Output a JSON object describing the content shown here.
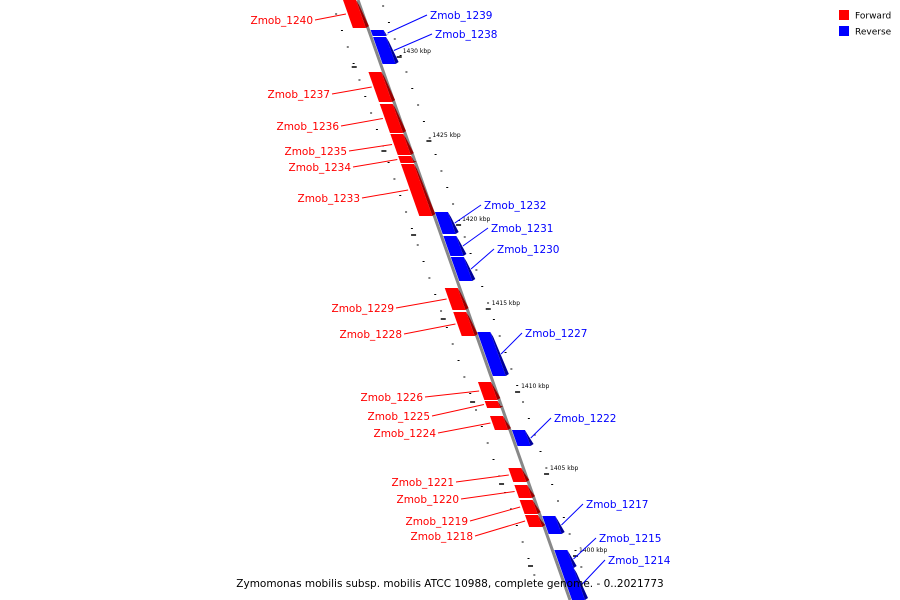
{
  "caption": "Zymomonas mobilis subsp. mobilis ATCC 10988, complete genome. - 0..2021773",
  "legend": [
    {
      "label": "Forward",
      "color": "#ff0000"
    },
    {
      "label": "Reverse",
      "color": "#0000ff"
    }
  ],
  "colors": {
    "forward": "#ff0000",
    "reverse": "#0000ff",
    "backbone": "#888888"
  },
  "ticks": [
    "1430 kbp",
    "1425 kbp",
    "1420 kbp",
    "1415 kbp",
    "1410 kbp",
    "1405 kbp",
    "1400 kbp"
  ],
  "genes": [
    {
      "name": "Zmob_1240",
      "strand": "forward"
    },
    {
      "name": "Zmob_1239",
      "strand": "reverse"
    },
    {
      "name": "Zmob_1238",
      "strand": "reverse"
    },
    {
      "name": "Zmob_1237",
      "strand": "forward"
    },
    {
      "name": "Zmob_1236",
      "strand": "forward"
    },
    {
      "name": "Zmob_1235",
      "strand": "forward"
    },
    {
      "name": "Zmob_1234",
      "strand": "forward"
    },
    {
      "name": "Zmob_1233",
      "strand": "forward"
    },
    {
      "name": "Zmob_1232",
      "strand": "reverse"
    },
    {
      "name": "Zmob_1231",
      "strand": "reverse"
    },
    {
      "name": "Zmob_1230",
      "strand": "reverse"
    },
    {
      "name": "Zmob_1229",
      "strand": "forward"
    },
    {
      "name": "Zmob_1228",
      "strand": "forward"
    },
    {
      "name": "Zmob_1227",
      "strand": "reverse"
    },
    {
      "name": "Zmob_1226",
      "strand": "forward"
    },
    {
      "name": "Zmob_1225",
      "strand": "forward"
    },
    {
      "name": "Zmob_1224",
      "strand": "forward"
    },
    {
      "name": "Zmob_1222",
      "strand": "reverse"
    },
    {
      "name": "Zmob_1221",
      "strand": "forward"
    },
    {
      "name": "Zmob_1220",
      "strand": "forward"
    },
    {
      "name": "Zmob_1219",
      "strand": "forward"
    },
    {
      "name": "Zmob_1218",
      "strand": "forward"
    },
    {
      "name": "Zmob_1217",
      "strand": "reverse"
    },
    {
      "name": "Zmob_1215",
      "strand": "reverse"
    },
    {
      "name": "Zmob_1214",
      "strand": "reverse"
    }
  ]
}
